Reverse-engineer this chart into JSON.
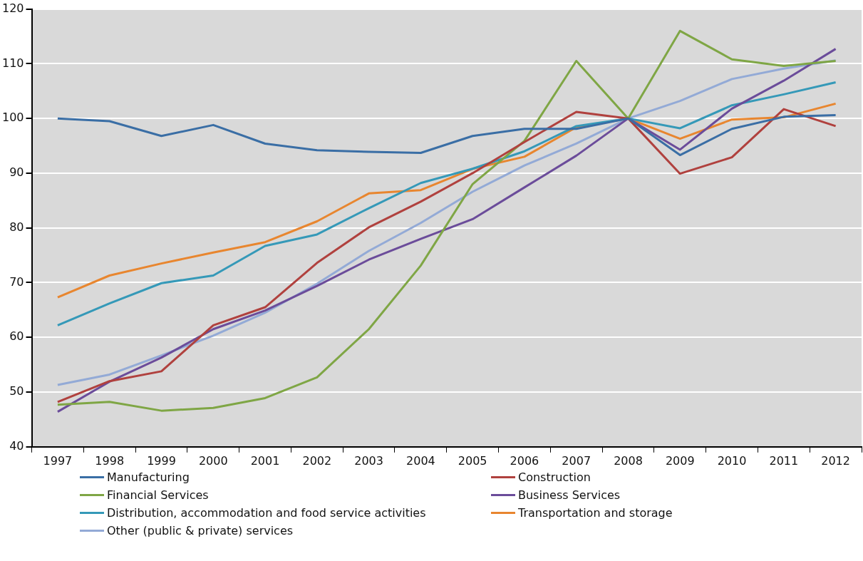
{
  "chart_data": {
    "type": "line",
    "categories": [
      "1997",
      "1998",
      "1999",
      "2000",
      "2001",
      "2002",
      "2003",
      "2004",
      "2005",
      "2006",
      "2007",
      "2008",
      "2009",
      "2010",
      "2011",
      "2012"
    ],
    "ylim": [
      40,
      120
    ],
    "yticks": [
      40,
      50,
      60,
      70,
      80,
      90,
      100,
      110,
      120
    ],
    "grid": "y",
    "legend": "bottom",
    "marker": "none",
    "line_style": "solid",
    "series": [
      {
        "name": "Manufacturing",
        "color": "#3a6ea5",
        "values": [
          100,
          99.5,
          96.8,
          98.8,
          95.4,
          94.2,
          93.9,
          93.7,
          96.8,
          98.1,
          98.1,
          100,
          93.3,
          98.1,
          100.3,
          100.6
        ]
      },
      {
        "name": "Construction",
        "color": "#b0413e",
        "values": [
          48.2,
          52,
          53.8,
          62.2,
          65.5,
          73.6,
          80.1,
          84.8,
          90,
          95.7,
          101.2,
          100,
          89.9,
          92.9,
          101.7,
          98.6
        ]
      },
      {
        "name": "Financial Services",
        "color": "#7fa645",
        "values": [
          47.7,
          48.2,
          46.6,
          47.1,
          48.9,
          52.7,
          61.5,
          73.1,
          88,
          95.9,
          110.5,
          100,
          116,
          110.8,
          109.6,
          110.5
        ]
      },
      {
        "name": "Business Services",
        "color": "#6b4c9a",
        "values": [
          46.4,
          51.9,
          56.3,
          61.5,
          64.9,
          69.4,
          74.2,
          78,
          81.6,
          87.4,
          93.2,
          100,
          94.3,
          101.8,
          106.9,
          112.7
        ]
      },
      {
        "name": "Distribution, accommodation and food service activities",
        "color": "#3599b8",
        "values": [
          62.2,
          66.2,
          69.9,
          71.3,
          76.7,
          78.8,
          83.6,
          88.2,
          90.8,
          94,
          98.6,
          100,
          98.2,
          102.4,
          104.4,
          106.6
        ]
      },
      {
        "name": "Transportation and storage",
        "color": "#e8862f",
        "values": [
          67.3,
          71.3,
          73.5,
          75.5,
          77.4,
          81.2,
          86.3,
          86.9,
          90.8,
          93,
          98.4,
          100,
          96.3,
          99.8,
          100.2,
          102.7
        ]
      },
      {
        "name": "Other (public & private) services",
        "color": "#93aad6",
        "values": [
          51.3,
          53.2,
          56.7,
          60.3,
          64.5,
          69.8,
          75.8,
          80.9,
          86.6,
          91.4,
          95.4,
          100,
          103.2,
          107.2,
          109.1,
          110.6
        ]
      }
    ]
  }
}
